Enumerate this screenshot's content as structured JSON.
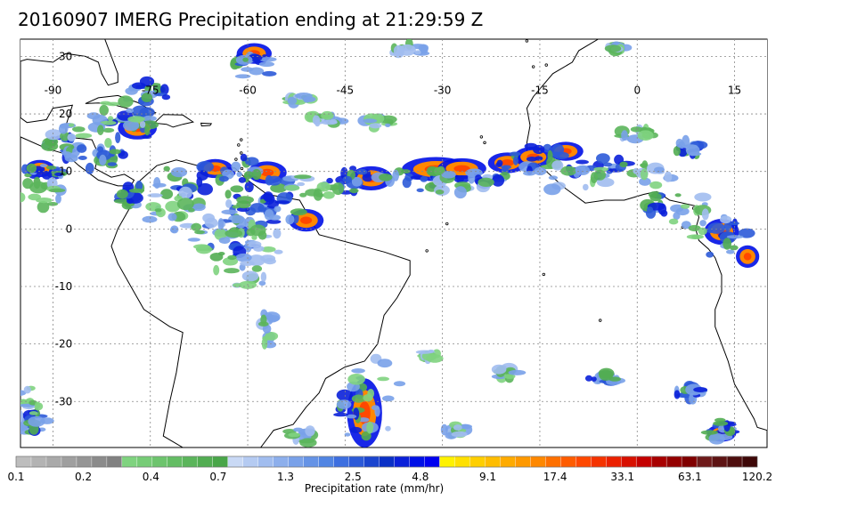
{
  "title": "20160907 IMERG Precipitation ending at 21:29:59 Z",
  "map": {
    "lon_range": [
      -95,
      20
    ],
    "lat_range": [
      -38,
      33
    ],
    "lon_ticks": [
      -90,
      -75,
      -60,
      -45,
      -30,
      -15,
      0,
      15
    ],
    "lat_ticks": [
      30,
      20,
      10,
      0,
      -10,
      -20,
      -30
    ],
    "lon_labels": [
      "-90",
      "-75",
      "-60",
      "-45",
      "-30",
      "-15",
      "0",
      "15"
    ],
    "lat_labels": [
      "30",
      "20",
      "10",
      "0",
      "-10",
      "-20",
      "-30"
    ],
    "grid": true,
    "ocean_color": "#ffffff",
    "coastline_color": "#000000"
  },
  "colorbar": {
    "label": "Precipitation rate (mm/hr)",
    "tick_labels": [
      "0.1",
      "0.2",
      "0.4",
      "0.7",
      "1.3",
      "2.5",
      "4.8",
      "9.1",
      "17.4",
      "33.1",
      "63.1",
      "120.2"
    ],
    "colors": [
      "#bdbdbd",
      "#b3b3b3",
      "#a9a9a9",
      "#9f9f9f",
      "#959595",
      "#8b8b8b",
      "#818181",
      "#7fd37f",
      "#76cc76",
      "#6dc46d",
      "#64bd64",
      "#5bb55b",
      "#52ad52",
      "#49a649",
      "#c9d9f5",
      "#b5cbf2",
      "#a1bdef",
      "#8dafec",
      "#79a1e9",
      "#6593e6",
      "#5185e3",
      "#3d6fe0",
      "#2c5ad8",
      "#1b45cf",
      "#0a30c6",
      "#0a20d9",
      "#0010e6",
      "#0000f0",
      "#fff200",
      "#ffe000",
      "#ffcf00",
      "#ffbd00",
      "#ffab00",
      "#ff9900",
      "#ff8800",
      "#ff7000",
      "#ff5c00",
      "#ff4800",
      "#f53300",
      "#eb2000",
      "#d81000",
      "#c40000",
      "#a80000",
      "#940000",
      "#800000",
      "#6e1a1a",
      "#5e1414",
      "#4e0e0e",
      "#3e0808"
    ]
  },
  "precip_features": [
    {
      "lon": -41,
      "lat": 8.8,
      "rx": 2.2,
      "ry": 1.4,
      "level": "heavy"
    },
    {
      "lon": -31,
      "lat": 10.4,
      "rx": 3.5,
      "ry": 1.4,
      "level": "heavy"
    },
    {
      "lon": -27,
      "lat": 10.5,
      "rx": 2.5,
      "ry": 1.2,
      "level": "heavy"
    },
    {
      "lon": -20,
      "lat": 11.5,
      "rx": 2.0,
      "ry": 1.2,
      "level": "heavy"
    },
    {
      "lon": -16,
      "lat": 12.5,
      "rx": 2.0,
      "ry": 1.2,
      "level": "heavy"
    },
    {
      "lon": -11,
      "lat": 13.5,
      "rx": 1.8,
      "ry": 1.1,
      "level": "heavy"
    },
    {
      "lon": -57,
      "lat": 9.8,
      "rx": 2.0,
      "ry": 1.3,
      "level": "heavy"
    },
    {
      "lon": -65,
      "lat": 10.5,
      "rx": 1.8,
      "ry": 1.1,
      "level": "heavy"
    },
    {
      "lon": -51,
      "lat": 1.5,
      "rx": 1.8,
      "ry": 1.3,
      "level": "heavy"
    },
    {
      "lon": -77,
      "lat": 17.5,
      "rx": 2.0,
      "ry": 1.3,
      "level": "heavy"
    },
    {
      "lon": -59,
      "lat": 30.5,
      "rx": 1.8,
      "ry": 1.2,
      "level": "heavy"
    },
    {
      "lon": -42,
      "lat": -32,
      "rx": 1.8,
      "ry": 4.0,
      "level": "heavy"
    },
    {
      "lon": 13,
      "lat": -0.5,
      "rx": 1.8,
      "ry": 1.5,
      "level": "heavy"
    },
    {
      "lon": 17,
      "lat": -4.8,
      "rx": 1.2,
      "ry": 1.3,
      "level": "heavy"
    },
    {
      "lon": 13,
      "lat": -35.5,
      "rx": 1.5,
      "ry": 1.0,
      "level": "heavy"
    },
    {
      "lon": -92,
      "lat": 10.5,
      "rx": 1.5,
      "ry": 1.0,
      "level": "heavy"
    },
    {
      "lon": -44,
      "lat": 8.5,
      "rx": 4.5,
      "ry": 2.5,
      "level": "moderate"
    },
    {
      "lon": -34,
      "lat": 9.0,
      "rx": 5.0,
      "ry": 2.5,
      "level": "moderate"
    },
    {
      "lon": -24,
      "lat": 10.0,
      "rx": 4.5,
      "ry": 2.5,
      "level": "moderate"
    },
    {
      "lon": -15,
      "lat": 12.0,
      "rx": 5.5,
      "ry": 2.5,
      "level": "moderate"
    },
    {
      "lon": -6,
      "lat": 11.0,
      "rx": 5.0,
      "ry": 2.0,
      "level": "moderate"
    },
    {
      "lon": -62,
      "lat": 9.5,
      "rx": 6.0,
      "ry": 3.0,
      "level": "moderate"
    },
    {
      "lon": -70,
      "lat": 8.0,
      "rx": 5.0,
      "ry": 3.0,
      "level": "moderate"
    },
    {
      "lon": -55,
      "lat": 5.0,
      "rx": 4.0,
      "ry": 4.0,
      "level": "moderate"
    },
    {
      "lon": -60,
      "lat": 3.0,
      "rx": 5.0,
      "ry": 4.0,
      "level": "moderate"
    },
    {
      "lon": -78,
      "lat": 18.0,
      "rx": 4.5,
      "ry": 3.0,
      "level": "moderate"
    },
    {
      "lon": -82,
      "lat": 12.0,
      "rx": 3.5,
      "ry": 2.5,
      "level": "moderate"
    },
    {
      "lon": -88,
      "lat": 14.0,
      "rx": 3.5,
      "ry": 2.0,
      "level": "moderate"
    },
    {
      "lon": 13,
      "lat": -1.0,
      "rx": 4.5,
      "ry": 4.0,
      "level": "moderate"
    },
    {
      "lon": 4,
      "lat": 4.5,
      "rx": 4.0,
      "ry": 2.0,
      "level": "moderate"
    },
    {
      "lon": 8,
      "lat": 14.0,
      "rx": 2.0,
      "ry": 1.5,
      "level": "moderate"
    },
    {
      "lon": -43,
      "lat": -31,
      "rx": 3.0,
      "ry": 6.0,
      "level": "moderate"
    },
    {
      "lon": 13,
      "lat": -35.0,
      "rx": 2.5,
      "ry": 1.8,
      "level": "moderate"
    },
    {
      "lon": 8,
      "lat": -28.5,
      "rx": 2.0,
      "ry": 1.2,
      "level": "moderate"
    },
    {
      "lon": -5,
      "lat": -26.0,
      "rx": 2.5,
      "ry": 1.0,
      "level": "moderate"
    },
    {
      "lon": -92,
      "lat": 10.0,
      "rx": 3.5,
      "ry": 2.0,
      "level": "moderate"
    },
    {
      "lon": -93,
      "lat": -33.5,
      "rx": 2.5,
      "ry": 2.0,
      "level": "moderate"
    },
    {
      "lon": -63,
      "lat": -2.0,
      "rx": 4.0,
      "ry": 4.0,
      "level": "moderate"
    },
    {
      "lon": -59,
      "lat": 28.5,
      "rx": 3.0,
      "ry": 2.5,
      "level": "moderate"
    },
    {
      "lon": -75,
      "lat": 24.0,
      "rx": 3.0,
      "ry": 2.0,
      "level": "moderate"
    },
    {
      "lon": -78,
      "lat": 6.0,
      "rx": 2.0,
      "ry": 2.0,
      "level": "moderate"
    },
    {
      "lon": -65,
      "lat": 2.0,
      "rx": 7.0,
      "ry": 3.5,
      "level": "light"
    },
    {
      "lon": -72,
      "lat": 4.0,
      "rx": 5.0,
      "ry": 3.0,
      "level": "light"
    },
    {
      "lon": -58,
      "lat": -3.0,
      "rx": 4.0,
      "ry": 3.0,
      "level": "light"
    },
    {
      "lon": -50,
      "lat": 7.5,
      "rx": 5.0,
      "ry": 2.0,
      "level": "light"
    },
    {
      "lon": -28,
      "lat": 8.5,
      "rx": 6.0,
      "ry": 2.5,
      "level": "light"
    },
    {
      "lon": -10,
      "lat": 9.0,
      "rx": 6.0,
      "ry": 2.5,
      "level": "light"
    },
    {
      "lon": 3,
      "lat": 9.5,
      "rx": 5.0,
      "ry": 2.0,
      "level": "light"
    },
    {
      "lon": 10,
      "lat": 2.5,
      "rx": 5.0,
      "ry": 4.0,
      "level": "light"
    },
    {
      "lon": -80,
      "lat": 20.0,
      "rx": 5.0,
      "ry": 3.0,
      "level": "light"
    },
    {
      "lon": -86,
      "lat": 15.5,
      "rx": 5.0,
      "ry": 3.0,
      "level": "light"
    },
    {
      "lon": -40,
      "lat": -29.0,
      "rx": 4.0,
      "ry": 7.0,
      "level": "light"
    },
    {
      "lon": -60,
      "lat": -7.0,
      "rx": 5.0,
      "ry": 3.0,
      "level": "light"
    },
    {
      "lon": -67,
      "lat": -1.0,
      "rx": 5.0,
      "ry": 3.0,
      "level": "light"
    },
    {
      "lon": -92,
      "lat": 6.0,
      "rx": 3.5,
      "ry": 3.0,
      "level": "light"
    },
    {
      "lon": -48,
      "lat": 19.0,
      "rx": 3.0,
      "ry": 1.0,
      "level": "light"
    },
    {
      "lon": -40,
      "lat": 18.5,
      "rx": 2.5,
      "ry": 1.0,
      "level": "light"
    },
    {
      "lon": -57,
      "lat": -17.0,
      "rx": 1.0,
      "ry": 3.5,
      "level": "light"
    },
    {
      "lon": -20,
      "lat": -25.0,
      "rx": 2.0,
      "ry": 1.0,
      "level": "light"
    },
    {
      "lon": -28,
      "lat": -35.0,
      "rx": 2.0,
      "ry": 1.0,
      "level": "light"
    },
    {
      "lon": -52,
      "lat": -36.0,
      "rx": 2.5,
      "ry": 1.5,
      "level": "light"
    },
    {
      "lon": -94,
      "lat": -30.0,
      "rx": 2.0,
      "ry": 3.0,
      "level": "light"
    },
    {
      "lon": 0,
      "lat": 16.5,
      "rx": 3.5,
      "ry": 1.0,
      "level": "light"
    },
    {
      "lon": -35,
      "lat": 31.0,
      "rx": 3.0,
      "ry": 1.2,
      "level": "light"
    },
    {
      "lon": -3,
      "lat": 31.5,
      "rx": 1.5,
      "ry": 0.8,
      "level": "light"
    },
    {
      "lon": -52,
      "lat": 22.5,
      "rx": 1.8,
      "ry": 0.8,
      "level": "light"
    },
    {
      "lon": -32,
      "lat": -22.0,
      "rx": 1.2,
      "ry": 1.0,
      "level": "light"
    }
  ]
}
